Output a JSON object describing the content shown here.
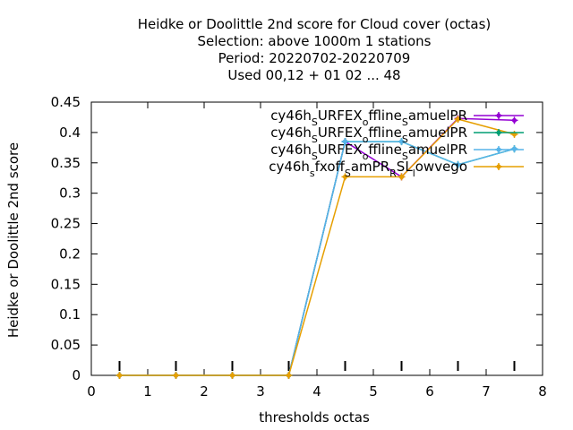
{
  "chart_data": {
    "type": "line",
    "title_lines": [
      "Heidke or Doolittle 2nd score  for Cloud cover (octas)",
      "Selection: above 1000m      1 stations",
      "Period: 20220702-20220709",
      "Used  00,12  + 01 02 ... 48"
    ],
    "xlabel": "thresholds octas",
    "ylabel": "Heidke or Doolittle 2nd score",
    "xlim": [
      0,
      8
    ],
    "ylim": [
      0,
      0.45
    ],
    "x_ticks": [
      "0",
      "1",
      "2",
      "3",
      "4",
      "5",
      "6",
      "7",
      "8"
    ],
    "y_ticks": [
      "0",
      "0.05",
      "0.1",
      "0.15",
      "0.2",
      "0.25",
      "0.3",
      "0.35",
      "0.4",
      "0.45"
    ],
    "x": [
      0.5,
      1.5,
      2.5,
      3.5,
      4.5,
      5.5,
      6.5,
      7.5
    ],
    "legend_position": "top-right",
    "series": [
      {
        "name": "cy46h_SURFEX_offline_SamuelPR",
        "color": "#9400d3",
        "values": [
          0,
          0,
          0,
          0,
          0.385,
          0.327,
          0.423,
          0.42
        ]
      },
      {
        "name": "cy46h_SURFEX_offline_SamuelPR",
        "color": "#009e73",
        "values": [
          0,
          0,
          0,
          0,
          0.385,
          0.385,
          0.347,
          0.373
        ]
      },
      {
        "name": "cy46h_SURFEX_offline_SamuelPR",
        "color": "#56b4e9",
        "values": [
          0,
          0,
          0,
          0,
          0.385,
          0.385,
          0.347,
          0.373
        ]
      },
      {
        "name": "cy46h_sfxoff_SamPR_RSL_lowvego",
        "color": "#e69f00",
        "values": [
          0,
          0,
          0,
          0,
          0.327,
          0.327,
          0.422,
          0.397
        ]
      }
    ],
    "legend_texts": [
      [
        "cy46h",
        "S",
        "URFEX",
        "o",
        "ffline",
        "S",
        "amuelPR"
      ],
      [
        "cy46h",
        "S",
        "URFEX",
        "o",
        "ffline",
        "S",
        "amuelPR"
      ],
      [
        "cy46h",
        "S",
        "URFEX",
        "o",
        "ffline",
        "S",
        "amuelPR"
      ],
      [
        "cy46h",
        "s",
        "fxoff",
        "S",
        "amPR",
        "R",
        "SL",
        "l",
        "owvego"
      ]
    ],
    "sample_size_ticks": [
      0.5,
      1.5,
      2.5,
      3.5,
      4.5,
      5.5,
      6.5,
      7.5
    ]
  }
}
